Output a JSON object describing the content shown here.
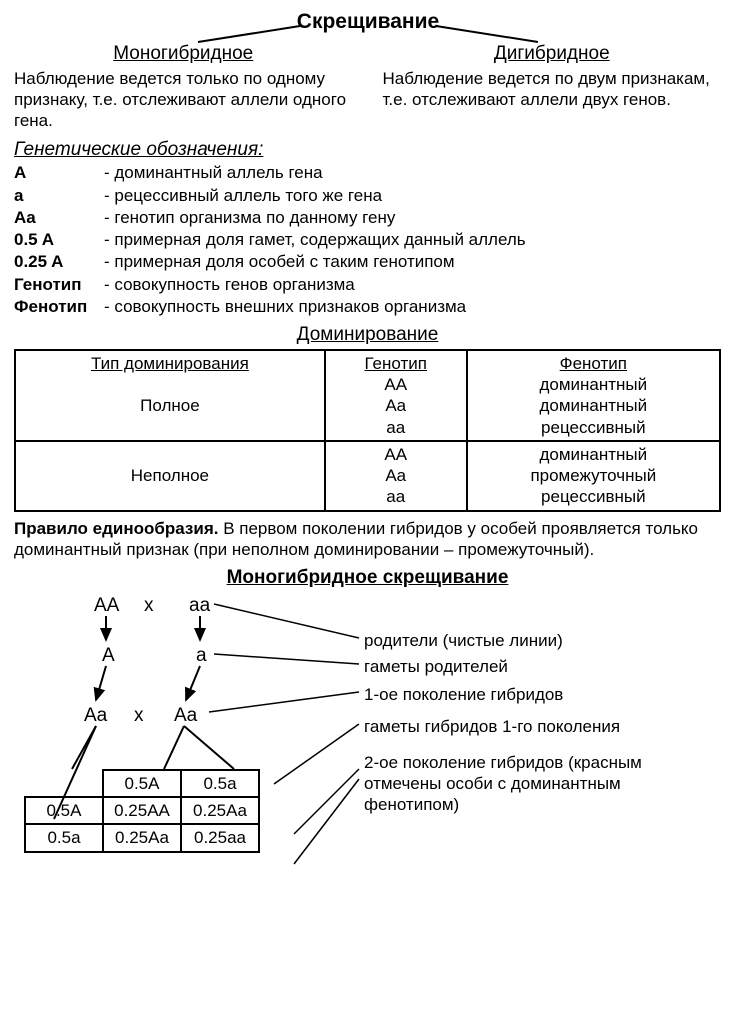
{
  "title": "Скрещивание",
  "left": {
    "head": "Моногибридное",
    "desc": "Наблюдение ведется только по одному признаку, т.е. отсле­живают аллели одного гена."
  },
  "right": {
    "head": "Дигибридное",
    "desc": "Наблюдение ведется по двум признакам, т.е. отслеживают аллели двух генов."
  },
  "defs_head": "Генетические обозначения:",
  "defs": [
    {
      "t": "A",
      "d": "- доминантный аллель гена"
    },
    {
      "t": "a",
      "d": "- рецессивный аллель того же гена"
    },
    {
      "t": "Aa",
      "d": "- генотип организма по данному гену"
    },
    {
      "t": "0.5 A",
      "d": "- примерная доля гамет, содержащих данный аллель"
    },
    {
      "t": "0.25 A",
      "d": "- примерная доля особей с таким генотипом"
    },
    {
      "t": "Генотип",
      "d": "- совокупность генов организма"
    },
    {
      "t": "Фенотип",
      "d": "- совокупность внешних признаков организма"
    }
  ],
  "dom_title": "Доминирование",
  "dom_headers": [
    "Тип доминирования",
    "Генотип",
    "Фенотип"
  ],
  "dom_rows": [
    {
      "type": "Полное",
      "geno": [
        "AA",
        "Aa",
        "aa"
      ],
      "pheno": [
        "доминантный",
        "доминантный",
        "рецессивный"
      ]
    },
    {
      "type": "Неполное",
      "geno": [
        "AA",
        "Aa",
        "aa"
      ],
      "pheno": [
        "доминантный",
        "промежуточный",
        "рецессивный"
      ]
    }
  ],
  "rule_bold": "Правило единообразия.",
  "rule_text": " В первом поколении гибридов у особей прояв­ляется только доминантный признак (при неполном доминировании – про­межуточный).",
  "mono_title": "Моногибридное скрещивание",
  "cross": {
    "p1": "AA",
    "x": "x",
    "p2": "aa",
    "g1": "A",
    "g2": "a",
    "f1a": "Aa",
    "f1b": "Aa",
    "punnett": {
      "col1": "0.5A",
      "col2": "0.5a",
      "row1": "0.5A",
      "row2": "0.5a",
      "c11": "0.25AA",
      "c12": "0.25Aa",
      "c21": "0.25Aa",
      "c22": "0.25aa"
    }
  },
  "labels": [
    "родители (чистые линии)",
    "гаметы родителей",
    "1-ое поколение гибридов",
    "гаметы гибридов 1-го поколения",
    "2-ое поколение гибридов (красным отмечены особи с доминантным фенотипом)"
  ]
}
